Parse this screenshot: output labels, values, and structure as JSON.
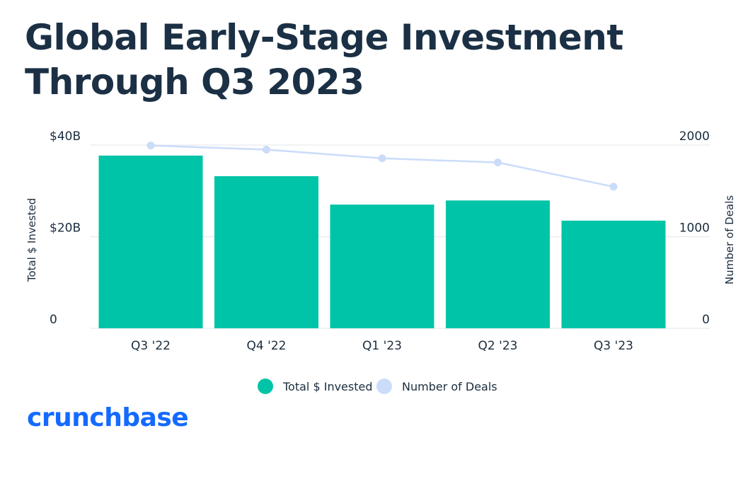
{
  "title": "Global Early-Stage Investment Through Q3 2023",
  "brand": {
    "logo_text": "crunchbase",
    "color": "#146aff"
  },
  "chart_data": {
    "type": "bar",
    "title": "Global Early-Stage Investment Through Q3 2023",
    "categories": [
      "Q3 '22",
      "Q4 '22",
      "Q1 '23",
      "Q2 '23",
      "Q3 '23"
    ],
    "series": [
      {
        "name": "Total $ Invested",
        "type": "bar",
        "axis": "left",
        "color": "#00c4a7",
        "values": [
          37.7,
          33.2,
          27.0,
          27.9,
          23.5
        ]
      },
      {
        "name": "Number of Deals",
        "type": "line",
        "axis": "right",
        "color": "#cbdcfa",
        "values": [
          1995,
          1950,
          1855,
          1810,
          1545
        ]
      }
    ],
    "y_left": {
      "label": "Total $ Invested",
      "min": 0,
      "max": 40,
      "ticks": [
        {
          "value": 0,
          "label": "0"
        },
        {
          "value": 20,
          "label": "$20B"
        },
        {
          "value": 40,
          "label": "$40B"
        }
      ]
    },
    "y_right": {
      "label": "Number of Deals",
      "min": 0,
      "max": 2000,
      "ticks": [
        {
          "value": 0,
          "label": "0"
        },
        {
          "value": 1000,
          "label": "1000"
        },
        {
          "value": 2000,
          "label": "2000"
        }
      ]
    },
    "grid": true,
    "legend": {
      "position": "bottom-center",
      "items": [
        "Total $ Invested",
        "Number of Deals"
      ]
    }
  }
}
